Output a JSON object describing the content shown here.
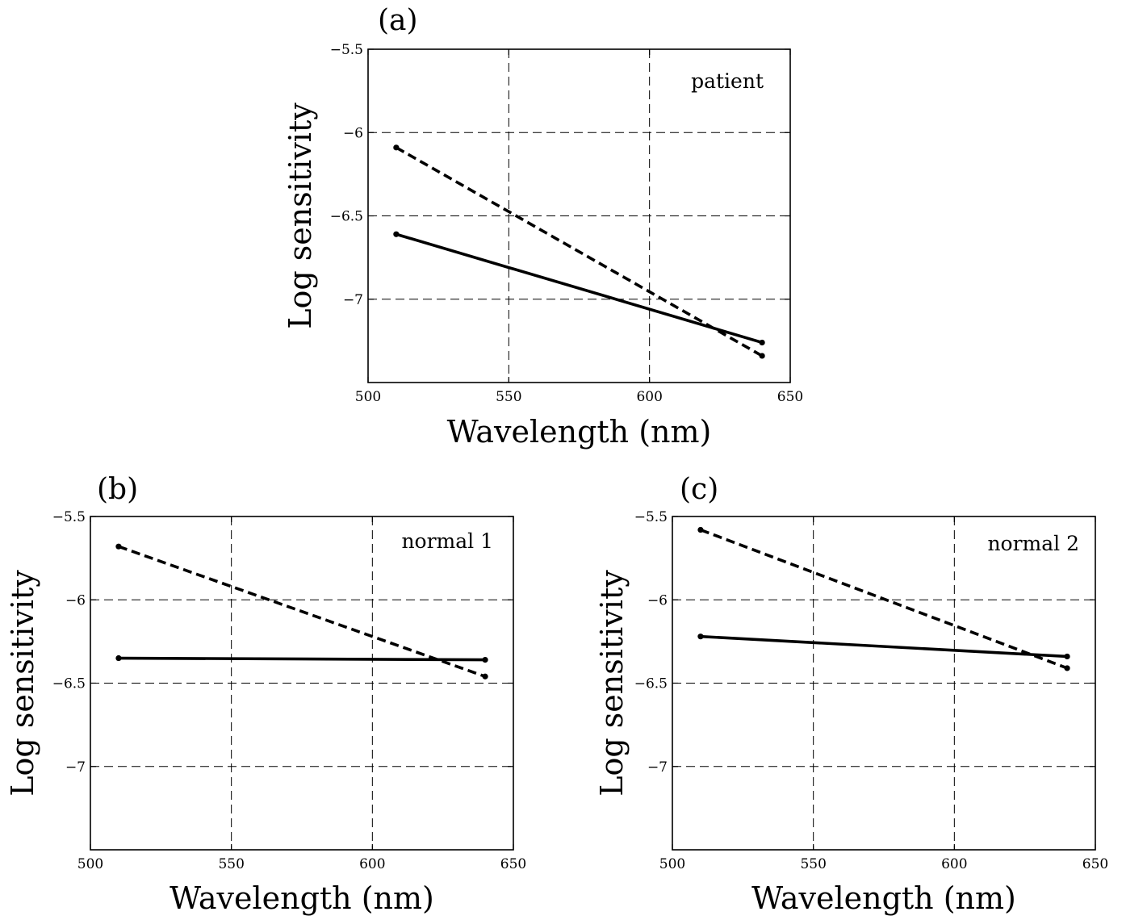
{
  "chart_data": [
    {
      "type": "line",
      "panel": "(a)",
      "annotation": "patient",
      "xlabel": "Wavelength (nm)",
      "ylabel": "Log sensitivity",
      "xlim": [
        500,
        650
      ],
      "ylim": [
        -7.5,
        -5.5
      ],
      "xticks": [
        500,
        550,
        600,
        650
      ],
      "yticks": [
        -5.5,
        -6,
        -6.5,
        -7
      ],
      "xtick_labels": [
        "500",
        "550",
        "600",
        "650"
      ],
      "ytick_labels": [
        "−5.5",
        "−6",
        "−6.5",
        "−7"
      ],
      "grid": true,
      "series": [
        {
          "style": "solid",
          "x": [
            510,
            640
          ],
          "y": [
            -6.61,
            -7.26
          ]
        },
        {
          "style": "dashed",
          "x": [
            510,
            640
          ],
          "y": [
            -6.09,
            -7.34
          ]
        }
      ]
    },
    {
      "type": "line",
      "panel": "(b)",
      "annotation": "normal 1",
      "xlabel": "Wavelength (nm)",
      "ylabel": "Log sensitivity",
      "xlim": [
        500,
        650
      ],
      "ylim": [
        -7.5,
        -5.5
      ],
      "xticks": [
        500,
        550,
        600,
        650
      ],
      "yticks": [
        -5.5,
        -6,
        -6.5,
        -7
      ],
      "xtick_labels": [
        "500",
        "550",
        "600",
        "650"
      ],
      "ytick_labels": [
        "−5.5",
        "−6",
        "−6.5",
        "−7"
      ],
      "grid": true,
      "series": [
        {
          "style": "solid",
          "x": [
            510,
            640
          ],
          "y": [
            -6.35,
            -6.36
          ]
        },
        {
          "style": "dashed",
          "x": [
            510,
            640
          ],
          "y": [
            -5.68,
            -6.46
          ]
        }
      ]
    },
    {
      "type": "line",
      "panel": "(c)",
      "annotation": "normal 2",
      "xlabel": "Wavelength (nm)",
      "ylabel": "Log sensitivity",
      "xlim": [
        500,
        650
      ],
      "ylim": [
        -7.5,
        -5.5
      ],
      "xticks": [
        500,
        550,
        600,
        650
      ],
      "yticks": [
        -5.5,
        -6,
        -6.5,
        -7
      ],
      "xtick_labels": [
        "500",
        "550",
        "600",
        "650"
      ],
      "ytick_labels": [
        "−5.5",
        "−6",
        "−6.5",
        "−7"
      ],
      "grid": true,
      "series": [
        {
          "style": "solid",
          "x": [
            510,
            640
          ],
          "y": [
            -6.22,
            -6.34
          ]
        },
        {
          "style": "dashed",
          "x": [
            510,
            640
          ],
          "y": [
            -5.58,
            -6.41
          ]
        }
      ]
    }
  ]
}
